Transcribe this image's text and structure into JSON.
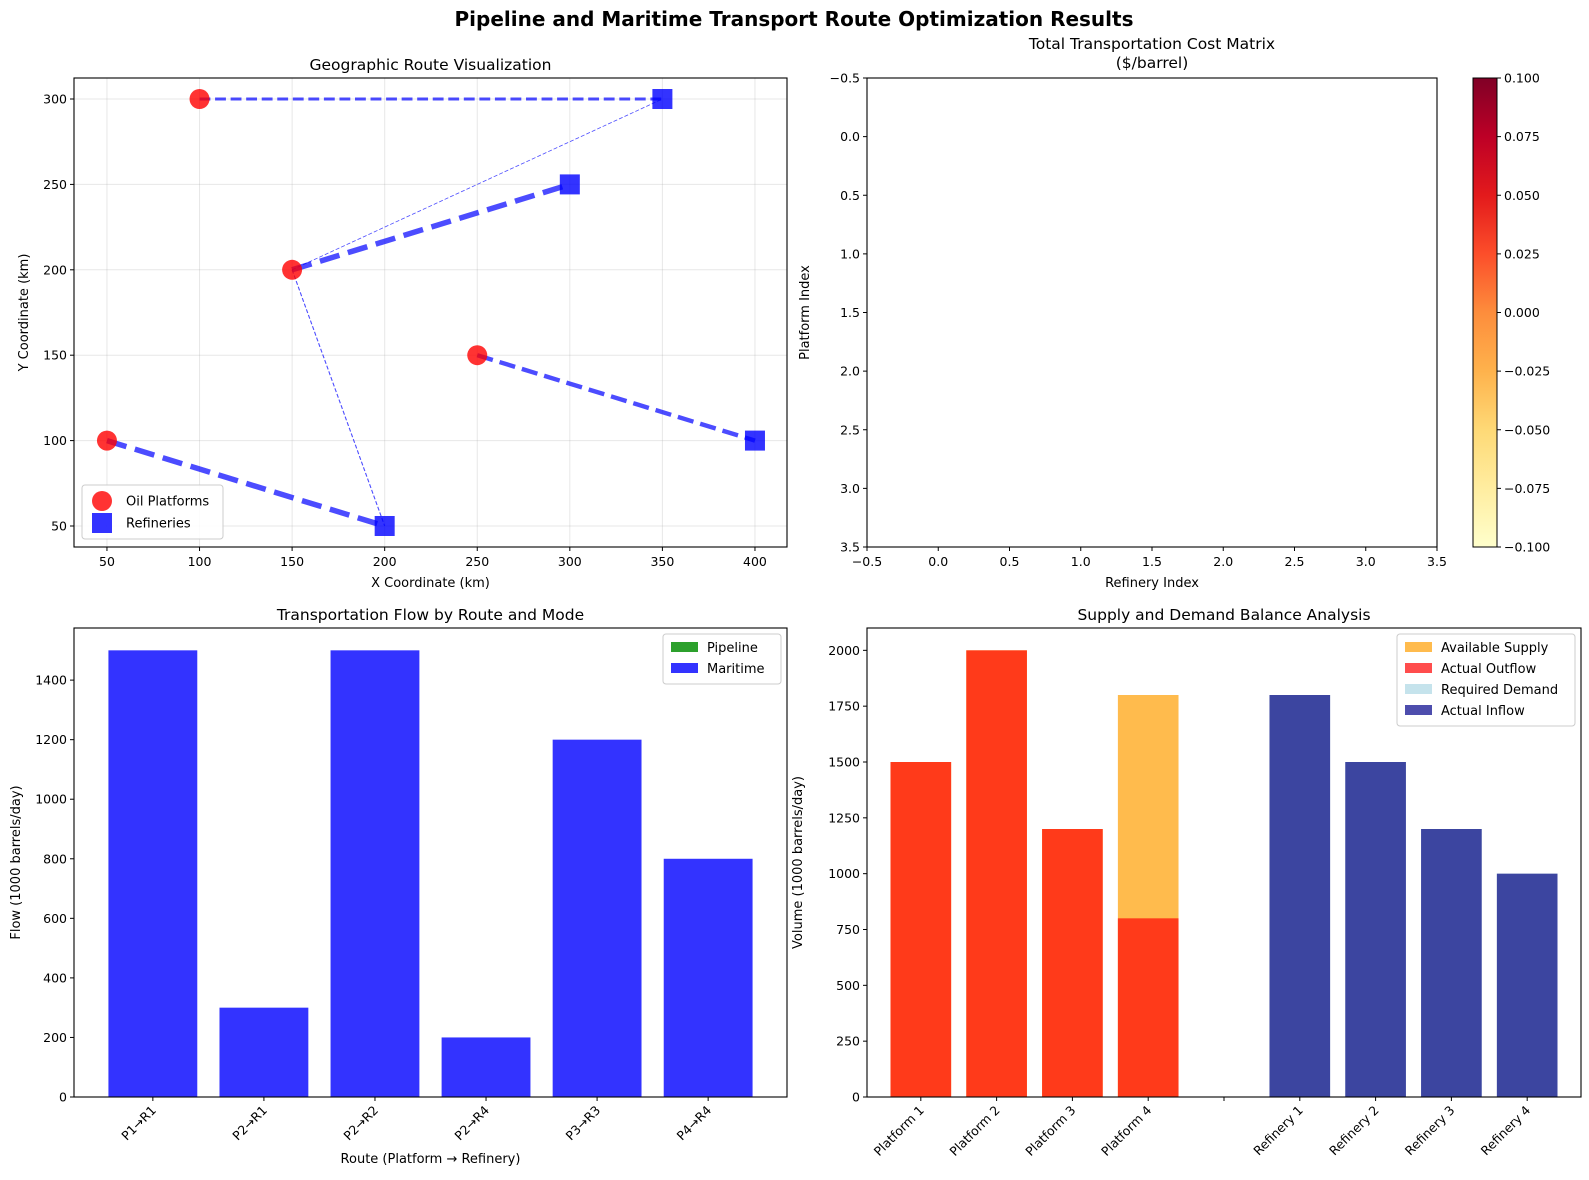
{
  "figure": {
    "title": "Pipeline and Maritime Transport Route Optimization Results"
  },
  "chart_data": [
    {
      "id": "route_map",
      "type": "scatter",
      "title": "Geographic Route Visualization",
      "xlabel": "X Coordinate (km)",
      "ylabel": "Y Coordinate (km)",
      "xlim": [
        32.2,
        417.3
      ],
      "ylim": [
        37.7,
        312.3
      ],
      "xticks": [
        50,
        100,
        150,
        200,
        250,
        300,
        350,
        400
      ],
      "yticks": [
        50,
        100,
        150,
        200,
        250,
        300
      ],
      "grid": true,
      "legend": {
        "placement": "lower-left",
        "entries": [
          {
            "label": "Oil Platforms",
            "color": "#ff0000",
            "marker": "circle"
          },
          {
            "label": "Refineries",
            "color": "#0000ff",
            "marker": "square"
          }
        ]
      },
      "platforms": [
        {
          "name": "P1",
          "x": 50,
          "y": 100
        },
        {
          "name": "P2",
          "x": 150,
          "y": 200
        },
        {
          "name": "P3",
          "x": 250,
          "y": 150
        },
        {
          "name": "P4",
          "x": 100,
          "y": 300
        }
      ],
      "refineries": [
        {
          "name": "R1",
          "x": 200,
          "y": 50
        },
        {
          "name": "R2",
          "x": 300,
          "y": 250
        },
        {
          "name": "R3",
          "x": 400,
          "y": 100
        },
        {
          "name": "R4",
          "x": 350,
          "y": 300
        }
      ],
      "routes": [
        {
          "from": "P1",
          "to": "R1",
          "flow": 1500,
          "mode": "Maritime"
        },
        {
          "from": "P2",
          "to": "R1",
          "flow": 300,
          "mode": "Maritime"
        },
        {
          "from": "P2",
          "to": "R2",
          "flow": 1500,
          "mode": "Maritime"
        },
        {
          "from": "P2",
          "to": "R4",
          "flow": 200,
          "mode": "Maritime"
        },
        {
          "from": "P3",
          "to": "R3",
          "flow": 1200,
          "mode": "Maritime"
        },
        {
          "from": "P4",
          "to": "R4",
          "flow": 800,
          "mode": "Maritime"
        }
      ],
      "route_color": "#0000ff"
    },
    {
      "id": "cost_matrix",
      "type": "heatmap",
      "title": "Total Transportation Cost Matrix",
      "subtitle": "($/barrel)",
      "xlabel": "Refinery Index",
      "ylabel": "Platform Index",
      "xlim": [
        -0.5,
        3.5
      ],
      "ylim": [
        3.5,
        -0.5
      ],
      "xticks": [
        "−0.5",
        "0.0",
        "0.5",
        "1.0",
        "1.5",
        "2.0",
        "2.5",
        "3.0",
        "3.5"
      ],
      "yticks": [
        "−0.5",
        "0.0",
        "0.5",
        "1.0",
        "1.5",
        "2.0",
        "2.5",
        "3.0",
        "3.5"
      ],
      "values": [
        [
          null,
          null,
          null,
          null
        ],
        [
          null,
          null,
          null,
          null
        ],
        [
          null,
          null,
          null,
          null
        ],
        [
          null,
          null,
          null,
          null
        ]
      ],
      "colormap": "YlOrRd",
      "colorbar": {
        "range": [
          -0.1,
          0.1
        ],
        "ticks": [
          "−0.100",
          "−0.075",
          "−0.050",
          "−0.025",
          "0.000",
          "0.025",
          "0.050",
          "0.075",
          "0.100"
        ],
        "colors": [
          "#ffffcc",
          "#ffeda0",
          "#fed976",
          "#feb24c",
          "#fd8d3c",
          "#fc4e2a",
          "#e31a1c",
          "#bd0026",
          "#800026"
        ]
      }
    },
    {
      "id": "flow_by_route",
      "type": "bar",
      "title": "Transportation Flow by Route and Mode",
      "xlabel": "Route (Platform → Refinery)",
      "ylabel": "Flow (1000 barrels/day)",
      "categories": [
        "P1→R1",
        "P2→R1",
        "P2→R2",
        "P2→R4",
        "P3→R3",
        "P4→R4"
      ],
      "series": [
        {
          "name": "Pipeline",
          "color": "#2ca02c",
          "values": [
            0,
            0,
            0,
            0,
            0,
            0
          ]
        },
        {
          "name": "Maritime",
          "color": "#3333ff",
          "values": [
            1500,
            300,
            1500,
            200,
            1200,
            800
          ]
        }
      ],
      "ylim": [
        0,
        1575
      ],
      "yticks": [
        0,
        200,
        400,
        600,
        800,
        1000,
        1200,
        1400
      ],
      "grid": false,
      "legend": {
        "placement": "upper-right"
      }
    },
    {
      "id": "supply_demand",
      "type": "bar",
      "title": "Supply and Demand Balance Analysis",
      "xlabel": "",
      "ylabel": "Volume (1000 barrels/day)",
      "categories": [
        "Platform 1",
        "Platform 2",
        "Platform 3",
        "Platform 4",
        "",
        "Refinery 1",
        "Refinery 2",
        "Refinery 3",
        "Refinery 4"
      ],
      "series": [
        {
          "name": "Available Supply",
          "color": "#ffbb4d",
          "values": [
            1500,
            2000,
            1200,
            1800,
            null,
            null,
            null,
            null,
            null
          ]
        },
        {
          "name": "Actual Outflow",
          "color": "#ff3a1a",
          "legend_color": "#ff4d4d",
          "values": [
            1500,
            2000,
            1200,
            800,
            null,
            null,
            null,
            null,
            null
          ]
        },
        {
          "name": "Required Demand",
          "color": "#c5e3ec",
          "values": [
            null,
            null,
            null,
            null,
            null,
            1800,
            1500,
            1200,
            1000
          ]
        },
        {
          "name": "Actual Inflow",
          "color": "#3c45a0",
          "legend_color": "#4d4dad",
          "values": [
            null,
            null,
            null,
            null,
            null,
            1800,
            1500,
            1200,
            1000
          ]
        }
      ],
      "ylim": [
        0,
        2100
      ],
      "yticks": [
        0,
        250,
        500,
        750,
        1000,
        1250,
        1500,
        1750,
        2000
      ],
      "grid": false,
      "legend": {
        "placement": "upper-right"
      }
    }
  ]
}
